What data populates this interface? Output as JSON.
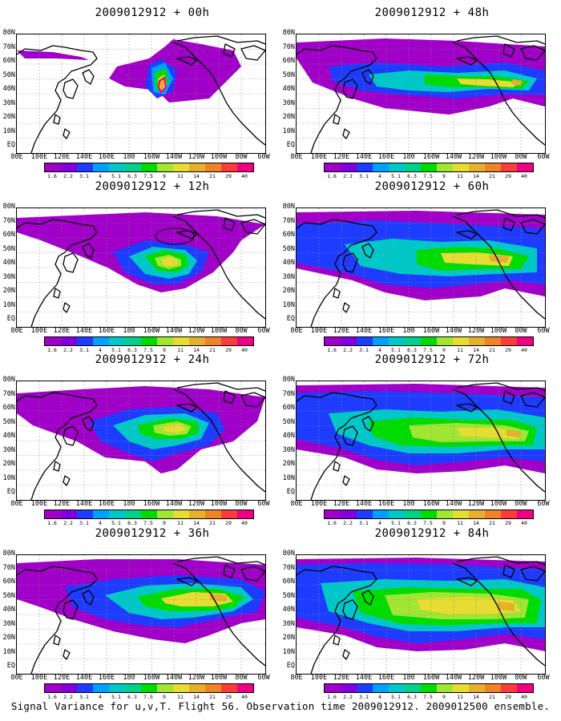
{
  "caption": "Signal Variance for u,v,T. Flight 56. Observation time 2009012912. 2009012500 ensemble.",
  "lat_labels": [
    "80N",
    "70N",
    "60N",
    "50N",
    "40N",
    "30N",
    "20N",
    "10N",
    "EQ"
  ],
  "lon_labels": [
    "80E",
    "100E",
    "120E",
    "140E",
    "160E",
    "180",
    "160W",
    "140W",
    "120W",
    "100W",
    "80W",
    "60W"
  ],
  "colorbar": {
    "labels": [
      "1.6",
      "2.2",
      "3.1",
      "4",
      "5.1",
      "6.3",
      "7.5",
      "9",
      "11",
      "14",
      "21",
      "29",
      "40"
    ],
    "colors": [
      "#a000c8",
      "#8200dc",
      "#1e3cff",
      "#00a0ff",
      "#00c8c8",
      "#00d28c",
      "#00dc00",
      "#a0e632",
      "#e6dc32",
      "#e6af2d",
      "#f08228",
      "#fa3c3c",
      "#f00082"
    ]
  },
  "panels": [
    {
      "title": "2009012912 + 00h"
    },
    {
      "title": "2009012912 + 48h"
    },
    {
      "title": "2009012912 + 12h"
    },
    {
      "title": "2009012912 + 60h"
    },
    {
      "title": "2009012912 + 24h"
    },
    {
      "title": "2009012912 + 72h"
    },
    {
      "title": "2009012912 + 36h"
    },
    {
      "title": "2009012912 + 84h"
    }
  ]
}
